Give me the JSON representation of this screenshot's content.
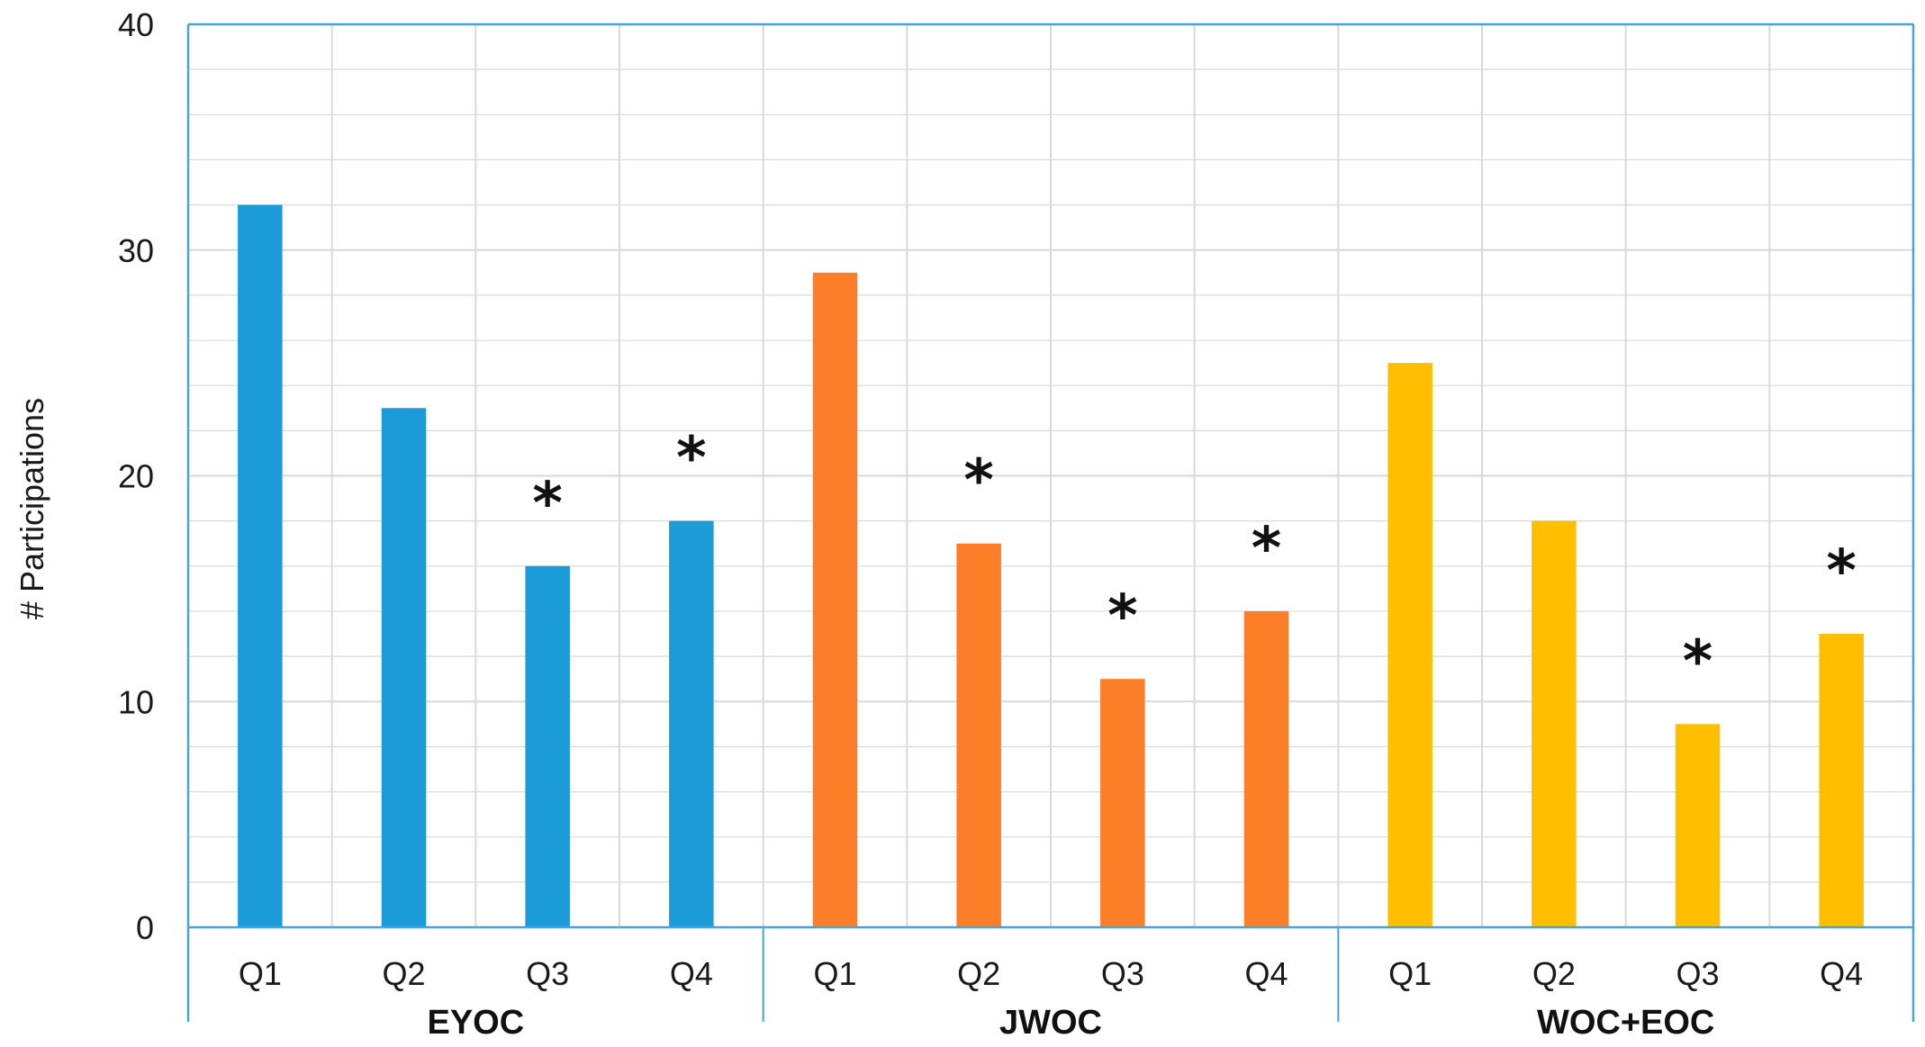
{
  "chart_data": {
    "type": "bar",
    "title": "",
    "xlabel": "",
    "ylabel": "# Participations",
    "ylim": [
      0,
      40
    ],
    "yticks": [
      0,
      10,
      20,
      30,
      40
    ],
    "minor_grid_step": 2,
    "groups": [
      {
        "name": "EYOC",
        "color": "#1b9bd7",
        "categories": [
          "Q1",
          "Q2",
          "Q3",
          "Q4"
        ],
        "values": [
          32,
          23,
          16,
          18
        ],
        "significant": [
          false,
          false,
          true,
          true
        ]
      },
      {
        "name": "JWOC",
        "color": "#fd7e28",
        "categories": [
          "Q1",
          "Q2",
          "Q3",
          "Q4"
        ],
        "values": [
          29,
          17,
          11,
          14
        ],
        "significant": [
          false,
          true,
          true,
          true
        ]
      },
      {
        "name": "WOC+EOC",
        "color": "#ffbf00",
        "categories": [
          "Q1",
          "Q2",
          "Q3",
          "Q4"
        ],
        "values": [
          25,
          18,
          9,
          13
        ],
        "significant": [
          false,
          false,
          true,
          true
        ]
      }
    ],
    "significance_marker": "*",
    "frame_color": "#4aa3d8",
    "grid_color": "#d9d9d9"
  }
}
